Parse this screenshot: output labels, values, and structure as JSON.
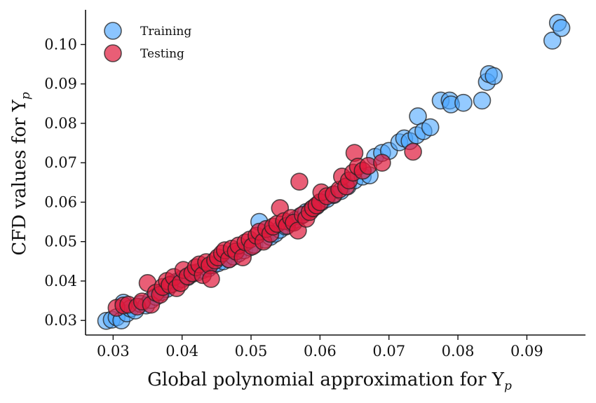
{
  "chart_data": {
    "type": "scatter",
    "xlabel": "Global polynomial approximation for Y",
    "xlabel_sub": "p",
    "ylabel": "CFD values for Y",
    "ylabel_sub": "p",
    "xlim": [
      0.026,
      0.0985
    ],
    "ylim": [
      0.0263,
      0.1088
    ],
    "x_ticks": [
      0.03,
      0.04,
      0.05,
      0.06,
      0.07,
      0.08,
      0.09
    ],
    "x_tick_labels": [
      "0.03",
      "0.04",
      "0.05",
      "0.06",
      "0.07",
      "0.08",
      "0.09"
    ],
    "y_ticks": [
      0.03,
      0.04,
      0.05,
      0.06,
      0.07,
      0.08,
      0.09,
      0.1
    ],
    "y_tick_labels": [
      "0.03",
      "0.04",
      "0.05",
      "0.06",
      "0.07",
      "0.08",
      "0.09",
      "0.10"
    ],
    "legend_position": "top-left",
    "grid": false,
    "series": [
      {
        "name": "Training",
        "color": "#4da6ff",
        "points": [
          [
            0.029,
            0.0299
          ],
          [
            0.0298,
            0.0302
          ],
          [
            0.0305,
            0.0308
          ],
          [
            0.0312,
            0.03
          ],
          [
            0.0315,
            0.0345
          ],
          [
            0.032,
            0.0318
          ],
          [
            0.0325,
            0.033
          ],
          [
            0.0332,
            0.0325
          ],
          [
            0.034,
            0.0342
          ],
          [
            0.0348,
            0.0338
          ],
          [
            0.0355,
            0.0352
          ],
          [
            0.0362,
            0.036
          ],
          [
            0.037,
            0.0372
          ],
          [
            0.0378,
            0.038
          ],
          [
            0.0385,
            0.0392
          ],
          [
            0.0392,
            0.0398
          ],
          [
            0.04,
            0.0405
          ],
          [
            0.0408,
            0.041
          ],
          [
            0.0415,
            0.0418
          ],
          [
            0.0422,
            0.0422
          ],
          [
            0.043,
            0.0428
          ],
          [
            0.0438,
            0.0432
          ],
          [
            0.0445,
            0.044
          ],
          [
            0.0452,
            0.0445
          ],
          [
            0.046,
            0.045
          ],
          [
            0.0468,
            0.0455
          ],
          [
            0.0475,
            0.0462
          ],
          [
            0.0482,
            0.047
          ],
          [
            0.049,
            0.0478
          ],
          [
            0.0498,
            0.0485
          ],
          [
            0.0505,
            0.0492
          ],
          [
            0.0512,
            0.055
          ],
          [
            0.052,
            0.0505
          ],
          [
            0.0528,
            0.0512
          ],
          [
            0.0535,
            0.052
          ],
          [
            0.0542,
            0.053
          ],
          [
            0.055,
            0.0538
          ],
          [
            0.0558,
            0.0548
          ],
          [
            0.0565,
            0.0556
          ],
          [
            0.0572,
            0.0565
          ],
          [
            0.058,
            0.0575
          ],
          [
            0.0588,
            0.0582
          ],
          [
            0.0595,
            0.059
          ],
          [
            0.0602,
            0.06
          ],
          [
            0.061,
            0.0608
          ],
          [
            0.062,
            0.0618
          ],
          [
            0.063,
            0.0628
          ],
          [
            0.064,
            0.064
          ],
          [
            0.065,
            0.0655
          ],
          [
            0.0662,
            0.0665
          ],
          [
            0.0672,
            0.0668
          ],
          [
            0.068,
            0.0715
          ],
          [
            0.069,
            0.0725
          ],
          [
            0.07,
            0.073
          ],
          [
            0.0715,
            0.0752
          ],
          [
            0.0722,
            0.0762
          ],
          [
            0.073,
            0.0755
          ],
          [
            0.074,
            0.077
          ],
          [
            0.0742,
            0.0818
          ],
          [
            0.075,
            0.078
          ],
          [
            0.076,
            0.079
          ],
          [
            0.0775,
            0.0858
          ],
          [
            0.0788,
            0.0858
          ],
          [
            0.079,
            0.0848
          ],
          [
            0.0808,
            0.0852
          ],
          [
            0.0835,
            0.0858
          ],
          [
            0.0842,
            0.0905
          ],
          [
            0.0845,
            0.0925
          ],
          [
            0.0852,
            0.092
          ],
          [
            0.0937,
            0.101
          ],
          [
            0.0945,
            0.1055
          ],
          [
            0.095,
            0.1042
          ]
        ]
      },
      {
        "name": "Testing",
        "color": "#e0193c",
        "points": [
          [
            0.0305,
            0.0332
          ],
          [
            0.0315,
            0.0338
          ],
          [
            0.0322,
            0.034
          ],
          [
            0.0335,
            0.0335
          ],
          [
            0.0342,
            0.0348
          ],
          [
            0.035,
            0.0395
          ],
          [
            0.0355,
            0.034
          ],
          [
            0.0362,
            0.037
          ],
          [
            0.0368,
            0.0365
          ],
          [
            0.0372,
            0.0385
          ],
          [
            0.0378,
            0.04
          ],
          [
            0.0382,
            0.039
          ],
          [
            0.0388,
            0.041
          ],
          [
            0.0392,
            0.0382
          ],
          [
            0.0398,
            0.0395
          ],
          [
            0.0402,
            0.0428
          ],
          [
            0.0408,
            0.0412
          ],
          [
            0.0415,
            0.042
          ],
          [
            0.042,
            0.0435
          ],
          [
            0.0425,
            0.0442
          ],
          [
            0.043,
            0.0415
          ],
          [
            0.0435,
            0.0448
          ],
          [
            0.044,
            0.044
          ],
          [
            0.0442,
            0.0405
          ],
          [
            0.0448,
            0.0452
          ],
          [
            0.0452,
            0.046
          ],
          [
            0.0458,
            0.047
          ],
          [
            0.0462,
            0.0478
          ],
          [
            0.0468,
            0.0455
          ],
          [
            0.0472,
            0.0482
          ],
          [
            0.0478,
            0.0475
          ],
          [
            0.0482,
            0.049
          ],
          [
            0.0488,
            0.046
          ],
          [
            0.0492,
            0.0498
          ],
          [
            0.0498,
            0.0505
          ],
          [
            0.0502,
            0.0488
          ],
          [
            0.0508,
            0.0515
          ],
          [
            0.0512,
            0.0525
          ],
          [
            0.0518,
            0.05
          ],
          [
            0.0522,
            0.0532
          ],
          [
            0.0528,
            0.052
          ],
          [
            0.0532,
            0.0538
          ],
          [
            0.0538,
            0.0545
          ],
          [
            0.0542,
            0.0585
          ],
          [
            0.0548,
            0.0552
          ],
          [
            0.0552,
            0.054
          ],
          [
            0.0558,
            0.056
          ],
          [
            0.0562,
            0.0548
          ],
          [
            0.0568,
            0.0528
          ],
          [
            0.057,
            0.0652
          ],
          [
            0.0575,
            0.0568
          ],
          [
            0.058,
            0.0558
          ],
          [
            0.0585,
            0.0575
          ],
          [
            0.059,
            0.0585
          ],
          [
            0.0595,
            0.0592
          ],
          [
            0.06,
            0.06
          ],
          [
            0.0602,
            0.0625
          ],
          [
            0.061,
            0.0615
          ],
          [
            0.062,
            0.062
          ],
          [
            0.0628,
            0.0632
          ],
          [
            0.0632,
            0.0665
          ],
          [
            0.0638,
            0.064
          ],
          [
            0.0642,
            0.0655
          ],
          [
            0.0648,
            0.0675
          ],
          [
            0.065,
            0.0725
          ],
          [
            0.0655,
            0.069
          ],
          [
            0.0662,
            0.068
          ],
          [
            0.067,
            0.0692
          ],
          [
            0.069,
            0.07
          ],
          [
            0.0735,
            0.0728
          ]
        ]
      }
    ]
  }
}
